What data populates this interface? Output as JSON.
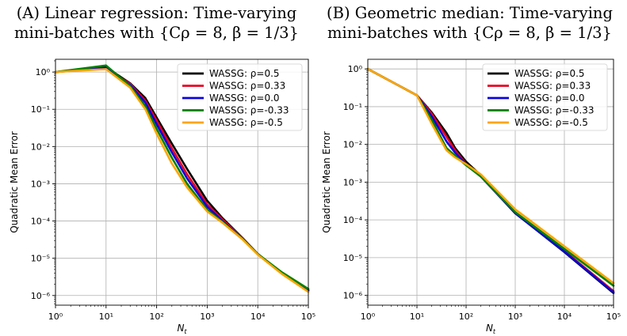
{
  "captions": {
    "a": {
      "line1": "(A) Linear regression: Time-varying",
      "line2": "mini-batches with {Cρ = 8, β = 1/3}"
    },
    "b": {
      "line1": "(B) Geometric median: Time-varying",
      "line2": "mini-batches with {Cρ = 8, β = 1/3}"
    }
  },
  "chart_data": [
    {
      "type": "line",
      "title": "(A) Linear regression: Time-varying mini-batches with {Cρ = 8, β = 1/3}",
      "xlabel": "N_t",
      "ylabel": "Quadratic Mean Error",
      "xscale": "log",
      "yscale": "log",
      "xlim": [
        1,
        100000
      ],
      "ylim": [
        5.5e-07,
        2.2
      ],
      "xticks": [
        1,
        10,
        100,
        1000,
        10000,
        100000
      ],
      "xtick_labels": [
        "10^0",
        "10^1",
        "10^2",
        "10^3",
        "10^4",
        "10^5"
      ],
      "yticks": [
        1e-06,
        1e-05,
        0.0001,
        0.001,
        0.01,
        0.1,
        1
      ],
      "ytick_labels": [
        "10^-6",
        "10^-5",
        "10^-4",
        "10^-3",
        "10^-2",
        "10^-1",
        "10^0"
      ],
      "grid": true,
      "legend_position": "top-right",
      "series": [
        {
          "name": "WASSG: ρ=0.5",
          "color": "#000000",
          "x": [
            1,
            10,
            30,
            60,
            100,
            200,
            400,
            1000,
            2000,
            5000,
            10000,
            30000,
            100000
          ],
          "y": [
            1.0,
            1.35,
            0.5,
            0.2,
            0.06,
            0.012,
            0.0025,
            0.00035,
            0.00012,
            3.5e-05,
            1.3e-05,
            4e-06,
            1.35e-06
          ]
        },
        {
          "name": "WASSG: ρ=0.33",
          "color": "#e8001c",
          "x": [
            1,
            10,
            30,
            60,
            100,
            200,
            400,
            1000,
            2000,
            5000,
            10000,
            30000,
            100000
          ],
          "y": [
            1.0,
            1.25,
            0.48,
            0.17,
            0.05,
            0.009,
            0.0018,
            0.00028,
            0.00011,
            3.4e-05,
            1.3e-05,
            4e-06,
            1.4e-06
          ]
        },
        {
          "name": "WASSG: ρ=0.0",
          "color": "#0a00e0",
          "x": [
            1,
            10,
            30,
            60,
            100,
            200,
            400,
            1000,
            2000,
            5000,
            10000,
            30000,
            100000
          ],
          "y": [
            1.0,
            1.3,
            0.45,
            0.15,
            0.04,
            0.007,
            0.0014,
            0.00024,
            0.0001,
            3.3e-05,
            1.3e-05,
            4e-06,
            1.35e-06
          ]
        },
        {
          "name": "WASSG: ρ=-0.33",
          "color": "#008000",
          "x": [
            1,
            10,
            30,
            60,
            100,
            200,
            400,
            1000,
            2000,
            5000,
            10000,
            30000,
            100000
          ],
          "y": [
            1.0,
            1.5,
            0.42,
            0.12,
            0.03,
            0.005,
            0.001,
            0.0002,
            9.5e-05,
            3.3e-05,
            1.3e-05,
            4.2e-06,
            1.5e-06
          ]
        },
        {
          "name": "WASSG: ρ=-0.5",
          "color": "#ffa500",
          "x": [
            1,
            10,
            30,
            60,
            100,
            200,
            400,
            1000,
            2000,
            5000,
            10000,
            30000,
            100000
          ],
          "y": [
            1.0,
            1.2,
            0.38,
            0.1,
            0.022,
            0.0035,
            0.0008,
            0.00018,
            9e-05,
            3.2e-05,
            1.25e-05,
            3.8e-06,
            1.25e-06
          ]
        }
      ]
    },
    {
      "type": "line",
      "title": "(B) Geometric median: Time-varying mini-batches with {Cρ = 8, β = 1/3}",
      "xlabel": "N_t",
      "ylabel": "Quadratic Mean Error",
      "xscale": "log",
      "yscale": "log",
      "xlim": [
        1,
        100000
      ],
      "ylim": [
        5.5e-07,
        1.8
      ],
      "xticks": [
        1,
        10,
        100,
        1000,
        10000,
        100000
      ],
      "xtick_labels": [
        "10^0",
        "10^1",
        "10^2",
        "10^3",
        "10^4",
        "10^5"
      ],
      "yticks": [
        1e-06,
        1e-05,
        0.0001,
        0.001,
        0.01,
        0.1,
        1
      ],
      "ytick_labels": [
        "10^-6",
        "10^-5",
        "10^-4",
        "10^-3",
        "10^-2",
        "10^-1",
        "10^0"
      ],
      "grid": true,
      "legend_position": "top-right",
      "series": [
        {
          "name": "WASSG: ρ=0.5",
          "color": "#000000",
          "x": [
            1,
            10,
            20,
            40,
            60,
            100,
            200,
            1000,
            10000,
            100000
          ],
          "y": [
            1.0,
            0.2,
            0.07,
            0.02,
            0.008,
            0.0035,
            0.0015,
            0.00015,
            1.4e-05,
            1.15e-06
          ]
        },
        {
          "name": "WASSG: ρ=0.33",
          "color": "#e8001c",
          "x": [
            1,
            10,
            20,
            40,
            60,
            100,
            200,
            1000,
            10000,
            100000
          ],
          "y": [
            1.0,
            0.2,
            0.065,
            0.016,
            0.007,
            0.003,
            0.0014,
            0.00015,
            1.5e-05,
            1.3e-06
          ]
        },
        {
          "name": "WASSG: ρ=0.0",
          "color": "#0a00e0",
          "x": [
            1,
            10,
            20,
            40,
            60,
            100,
            200,
            1000,
            10000,
            100000
          ],
          "y": [
            1.0,
            0.2,
            0.055,
            0.012,
            0.006,
            0.003,
            0.0014,
            0.00015,
            1.45e-05,
            1.2e-06
          ]
        },
        {
          "name": "WASSG: ρ=-0.33",
          "color": "#008000",
          "x": [
            1,
            10,
            20,
            40,
            60,
            100,
            200,
            1000,
            10000,
            100000
          ],
          "y": [
            1.0,
            0.2,
            0.045,
            0.008,
            0.005,
            0.0028,
            0.0014,
            0.00016,
            1.7e-05,
            1.8e-06
          ]
        },
        {
          "name": "WASSG: ρ=-0.5",
          "color": "#ffa500",
          "x": [
            1,
            10,
            20,
            40,
            60,
            100,
            200,
            1000,
            10000,
            100000
          ],
          "y": [
            1.0,
            0.2,
            0.035,
            0.007,
            0.0045,
            0.003,
            0.0016,
            0.00019,
            2e-05,
            2.1e-06
          ]
        }
      ]
    }
  ]
}
